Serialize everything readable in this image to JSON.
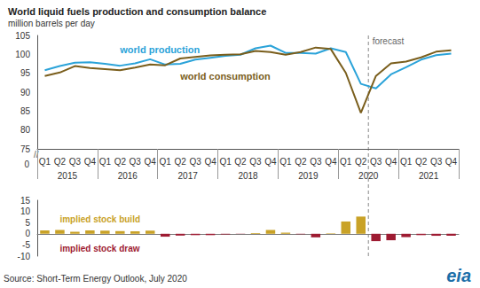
{
  "title": "World liquid fuels production and consumption balance",
  "subtitle": "million barrels per day",
  "source": "Source: Short-Term Energy Outlook, July 2020",
  "logo": "eia",
  "chart_data": [
    {
      "type": "line",
      "categories": [
        "Q1",
        "Q2",
        "Q3",
        "Q4",
        "Q1",
        "Q2",
        "Q3",
        "Q4",
        "Q1",
        "Q2",
        "Q3",
        "Q4",
        "Q1",
        "Q2",
        "Q3",
        "Q4",
        "Q1",
        "Q2",
        "Q3",
        "Q4",
        "Q1",
        "Q2",
        "Q3",
        "Q4",
        "Q1",
        "Q2",
        "Q3",
        "Q4"
      ],
      "years": [
        "2015",
        "2016",
        "2017",
        "2018",
        "2019",
        "2020",
        "2021"
      ],
      "series": [
        {
          "name": "world production",
          "color": "#2ba3d9",
          "values": [
            95.8,
            96.9,
            97.8,
            97.9,
            97.5,
            97.0,
            97.6,
            98.7,
            97.3,
            97.5,
            98.6,
            99.1,
            99.6,
            99.9,
            101.6,
            102.3,
            100.4,
            100.4,
            100.2,
            101.6,
            100.6,
            92.2,
            91.0,
            94.7,
            96.6,
            98.6,
            99.8,
            100.2
          ]
        },
        {
          "name": "world consumption",
          "color": "#7a5e1c",
          "values": [
            94.3,
            95.2,
            96.9,
            96.4,
            96.1,
            95.8,
            96.5,
            97.3,
            97.1,
            98.9,
            99.3,
            99.7,
            99.9,
            100.0,
            100.9,
            100.6,
            99.9,
            100.6,
            101.8,
            101.4,
            95.1,
            84.5,
            94.3,
            97.6,
            98.1,
            99.2,
            100.7,
            101.1
          ]
        }
      ],
      "ylim": [
        75,
        105
      ],
      "yticks": [
        75,
        80,
        85,
        90,
        95,
        100,
        105
      ],
      "grid": false,
      "annotations": [
        "forecast",
        "//",
        "0"
      ],
      "forecast_start": {
        "year": "2020",
        "quarter": "Q3"
      }
    },
    {
      "type": "bar",
      "categories": [
        "Q1",
        "Q2",
        "Q3",
        "Q4",
        "Q1",
        "Q2",
        "Q3",
        "Q4",
        "Q1",
        "Q2",
        "Q3",
        "Q4",
        "Q1",
        "Q2",
        "Q3",
        "Q4",
        "Q1",
        "Q2",
        "Q3",
        "Q4",
        "Q1",
        "Q2",
        "Q3",
        "Q4",
        "Q1",
        "Q2",
        "Q3",
        "Q4"
      ],
      "values": [
        1.5,
        1.7,
        0.9,
        1.5,
        1.4,
        1.2,
        1.1,
        1.4,
        -1.3,
        -0.8,
        -0.6,
        -0.6,
        -0.3,
        -0.1,
        0.3,
        1.7,
        0.5,
        -0.2,
        -1.6,
        0.2,
        5.5,
        7.7,
        -3.3,
        -2.9,
        -1.5,
        -0.6,
        -0.9,
        -0.9
      ],
      "colors": [
        "#c9a227",
        "#c9a227",
        "#c9a227",
        "#c9a227",
        "#c9a227",
        "#c9a227",
        "#c9a227",
        "#c9a227",
        "#9e1b32",
        "#9e1b32",
        "#9e1b32",
        "#9e1b32",
        "#9e1b32",
        "#9e1b32",
        "#c9a227",
        "#c9a227",
        "#c9a227",
        "#9e1b32",
        "#9e1b32",
        "#c9a227",
        "#c9a227",
        "#c9a227",
        "#9e1b32",
        "#9e1b32",
        "#9e1b32",
        "#9e1b32",
        "#9e1b32",
        "#9e1b32"
      ],
      "ylim": [
        -10,
        15
      ],
      "yticks": [
        -10,
        -5,
        0,
        5,
        10,
        15
      ],
      "grid": false,
      "tick_labels": "y",
      "annotations": [
        "implied stock build",
        "implied stock draw"
      ]
    }
  ]
}
